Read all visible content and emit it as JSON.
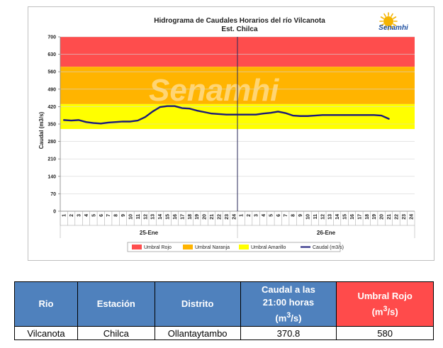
{
  "chart_data": {
    "type": "line",
    "title": "Hidrograma de Caudales Horarios del río Vilcanota",
    "subtitle": "Est. Chilca",
    "logo_text": "Senamhi",
    "watermark_text": "Senamhi",
    "ylabel": "Caudal  (m3/s)",
    "ylim": [
      0,
      700
    ],
    "yticks": [
      "0",
      "70",
      "140",
      "210",
      "280",
      "350",
      "420",
      "490",
      "560",
      "630",
      "700"
    ],
    "x_hours": [
      "1",
      "2",
      "3",
      "4",
      "5",
      "6",
      "7",
      "8",
      "9",
      "10",
      "11",
      "12",
      "13",
      "14",
      "15",
      "16",
      "17",
      "18",
      "19",
      "20",
      "21",
      "22",
      "23",
      "24",
      "1",
      "2",
      "3",
      "4",
      "5",
      "6",
      "7",
      "8",
      "9",
      "10",
      "11",
      "12",
      "13",
      "14",
      "15",
      "16",
      "17",
      "18",
      "19",
      "20",
      "21",
      "22",
      "23",
      "24"
    ],
    "day_labels": [
      "25-Ene",
      "26-Ene"
    ],
    "bands": [
      {
        "name": "Umbral Rojo",
        "from": 580,
        "to": 700,
        "color": "#fe4d4d"
      },
      {
        "name": "Umbral Naranja",
        "from": 430,
        "to": 580,
        "color": "#ffb400"
      },
      {
        "name": "Umbral Amarillo",
        "from": 330,
        "to": 430,
        "color": "#ffff00"
      }
    ],
    "series": [
      {
        "name": "Caudal (m3/s)",
        "color": "#1a1a7a",
        "values": [
          366,
          364,
          366,
          358,
          354,
          352,
          356,
          358,
          360,
          360,
          364,
          378,
          400,
          418,
          422,
          422,
          414,
          412,
          404,
          398,
          392,
          390,
          388,
          388,
          388,
          388,
          388,
          392,
          395,
          400,
          394,
          384,
          382,
          382,
          384,
          386,
          386,
          386,
          386,
          386,
          386,
          386,
          386,
          384,
          371
        ]
      }
    ],
    "legend": [
      {
        "label": "Umbral Rojo",
        "color": "#fe4d4d",
        "kind": "swatch"
      },
      {
        "label": "Umbral Naranja",
        "color": "#ffb400",
        "kind": "swatch"
      },
      {
        "label": "Umbral Amarillo",
        "color": "#ffff00",
        "kind": "swatch"
      },
      {
        "label": "Caudal (m3/s)",
        "color": "#1a1a7a",
        "kind": "line"
      }
    ],
    "legend_position": "bottom"
  },
  "table": {
    "headers": {
      "rio": "Rio",
      "estacion": "Estación",
      "distrito": "Distrito",
      "caudal_line1": "Caudal a las",
      "caudal_line2": "21:00 horas",
      "caudal_unit_open": "(m",
      "caudal_unit_sup": "3",
      "caudal_unit_close": "/s)",
      "umbral_line1": "Umbral Rojo",
      "umbral_unit_open": "(m",
      "umbral_unit_sup": "3",
      "umbral_unit_close": "/s)"
    },
    "row": {
      "rio": "Vilcanota",
      "estacion": "Chilca",
      "distrito": "Ollantaytambo",
      "caudal": "370.8",
      "umbral": "580"
    }
  }
}
